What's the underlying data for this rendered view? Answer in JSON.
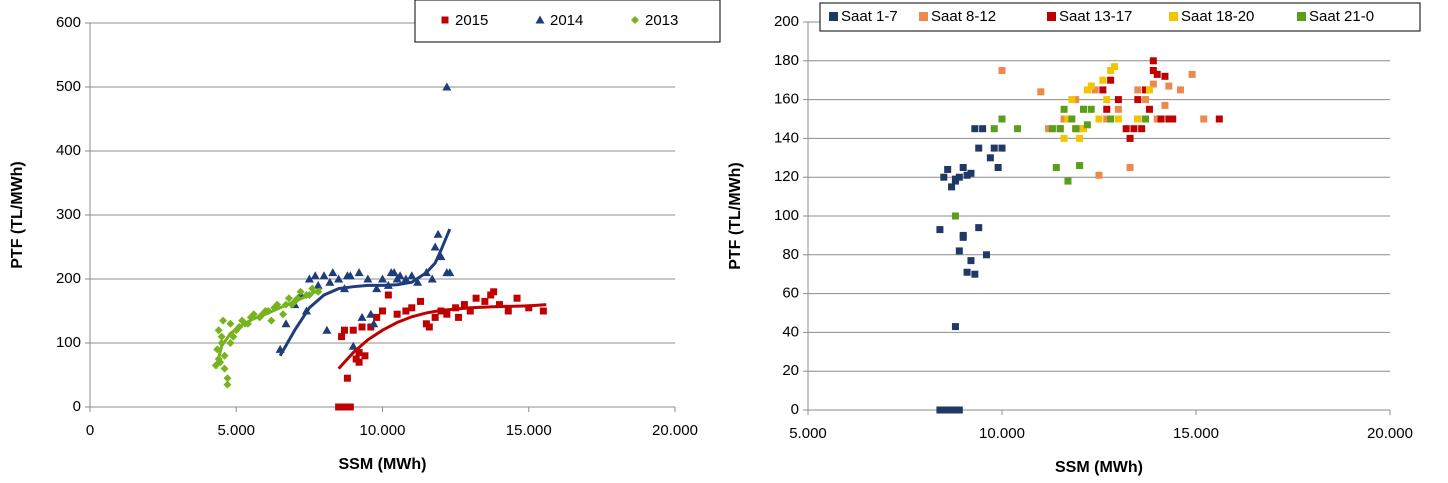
{
  "chart_data": [
    {
      "type": "scatter",
      "xlabel": "SSM (MWh)",
      "ylabel": "PTF (TL/MWh)",
      "xlim": [
        0,
        20000
      ],
      "xticks": [
        0,
        {
          "value": 5000,
          "label": "5.000"
        },
        {
          "value": 10000,
          "label": "10.000"
        },
        {
          "value": 15000,
          "label": "15.000"
        },
        {
          "value": 20000,
          "label": "20.000"
        }
      ],
      "ylim": [
        0,
        600
      ],
      "yticks": [
        0,
        100,
        200,
        300,
        400,
        500,
        600
      ],
      "grid": true,
      "legend": "top-right",
      "series": [
        {
          "name": "2015",
          "color": "#c00000",
          "marker": "square",
          "x": [
            8500,
            8600,
            8700,
            8800,
            8900,
            8700,
            8800,
            9000,
            9100,
            9200,
            9300,
            9400,
            9600,
            9800,
            10000,
            10200,
            10500,
            10800,
            11000,
            11300,
            11500,
            11800,
            12000,
            12200,
            12500,
            12800,
            13000,
            13200,
            13500,
            13800,
            14000,
            14300,
            14600,
            15000,
            15500,
            8600,
            9200,
            11600,
            12600,
            13700
          ],
          "values": [
            0,
            0,
            0,
            0,
            0,
            120,
            45,
            120,
            75,
            85,
            125,
            80,
            125,
            140,
            150,
            175,
            145,
            150,
            155,
            165,
            130,
            140,
            150,
            145,
            155,
            160,
            150,
            170,
            165,
            180,
            160,
            150,
            170,
            155,
            150,
            110,
            70,
            125,
            140,
            175
          ]
        },
        {
          "name": "2014",
          "color": "#1f3d7a",
          "marker": "triangle",
          "x": [
            6500,
            6700,
            7000,
            7200,
            7500,
            7700,
            7800,
            8000,
            8200,
            8300,
            8500,
            8700,
            8900,
            9000,
            9200,
            9500,
            9700,
            9800,
            10000,
            10200,
            10400,
            10600,
            10800,
            11000,
            11200,
            11500,
            11700,
            11900,
            12000,
            12200,
            12300,
            7400,
            8100,
            9300,
            10500,
            11800,
            12200,
            8800,
            9600,
            10300
          ],
          "values": [
            90,
            130,
            160,
            175,
            200,
            205,
            190,
            205,
            195,
            210,
            200,
            185,
            205,
            95,
            210,
            200,
            130,
            185,
            200,
            190,
            210,
            205,
            200,
            205,
            195,
            210,
            200,
            270,
            235,
            210,
            210,
            150,
            120,
            140,
            200,
            250,
            500,
            205,
            145,
            210
          ]
        },
        {
          "name": "2013",
          "color": "#77b31e",
          "marker": "diamond",
          "x": [
            4300,
            4350,
            4400,
            4450,
            4500,
            4550,
            4600,
            4700,
            4800,
            4900,
            5000,
            5200,
            5400,
            5600,
            5800,
            6000,
            6200,
            6400,
            6600,
            6800,
            7000,
            7200,
            7400,
            7600,
            7800,
            4400,
            4500,
            4700,
            5100,
            5500,
            5900,
            6300,
            6700,
            7100,
            7500,
            4600,
            4800,
            5300,
            6100,
            6900
          ],
          "values": [
            65,
            90,
            120,
            70,
            100,
            135,
            80,
            35,
            130,
            110,
            120,
            135,
            130,
            145,
            140,
            150,
            135,
            160,
            145,
            170,
            165,
            180,
            175,
            185,
            180,
            75,
            110,
            45,
            125,
            140,
            145,
            155,
            160,
            170,
            175,
            60,
            100,
            130,
            150,
            160
          ]
        }
      ],
      "trendlines": [
        {
          "color": "#c00000",
          "x": [
            8500,
            9000,
            9500,
            10000,
            10500,
            11000,
            11500,
            12000,
            13000,
            14000,
            15000,
            15600
          ],
          "values": [
            60,
            85,
            105,
            120,
            132,
            141,
            147,
            151,
            155,
            157,
            158,
            160
          ]
        },
        {
          "color": "#1f3d7a",
          "x": [
            6500,
            7000,
            7500,
            8000,
            8500,
            9000,
            9500,
            10000,
            10500,
            11000,
            11500,
            11800,
            12000,
            12300
          ],
          "values": [
            80,
            120,
            155,
            175,
            185,
            188,
            190,
            190,
            191,
            195,
            210,
            225,
            245,
            278
          ]
        },
        {
          "color": "#77b31e",
          "x": [
            4300,
            4500,
            4800,
            5200,
            5600,
            6000,
            6500,
            7000,
            7500,
            7900
          ],
          "values": [
            60,
            95,
            115,
            128,
            138,
            145,
            155,
            165,
            175,
            185
          ]
        }
      ]
    },
    {
      "type": "scatter",
      "xlabel": "SSM (MWh)",
      "ylabel": "PTF (TL/MWh)",
      "xlim": [
        5000,
        20000
      ],
      "xticks": [
        {
          "value": 5000,
          "label": "5.000"
        },
        {
          "value": 10000,
          "label": "10.000"
        },
        {
          "value": 15000,
          "label": "15.000"
        },
        {
          "value": 20000,
          "label": "20.000"
        }
      ],
      "ylim": [
        0,
        200
      ],
      "yticks": [
        0,
        20,
        40,
        60,
        80,
        100,
        120,
        140,
        160,
        180,
        200
      ],
      "grid": true,
      "legend": "top",
      "series": [
        {
          "name": "Saat 1-7",
          "color": "#1f3864",
          "marker": "square",
          "x": [
            8400,
            8500,
            8600,
            8700,
            8800,
            8900,
            8500,
            8600,
            8700,
            8800,
            8900,
            9000,
            9100,
            9200,
            9300,
            9400,
            9500,
            9600,
            9700,
            9800,
            9900,
            10000,
            9000,
            9200,
            9300,
            9100,
            8800,
            8900,
            9400,
            9000,
            8800,
            8400
          ],
          "values": [
            0,
            0,
            0,
            0,
            0,
            0,
            120,
            124,
            115,
            118,
            120,
            125,
            121,
            122,
            145,
            135,
            145,
            80,
            130,
            135,
            125,
            135,
            90,
            77,
            70,
            71,
            43,
            82,
            94,
            89,
            119,
            93
          ]
        },
        {
          "name": "Saat 8-12",
          "color": "#eb8a4a",
          "marker": "square",
          "x": [
            10000,
            11000,
            11200,
            11600,
            12000,
            12500,
            12700,
            13000,
            13300,
            13500,
            13700,
            13900,
            14000,
            14200,
            14300,
            14600,
            14900,
            15200,
            12400,
            11900
          ],
          "values": [
            175,
            164,
            145,
            150,
            145,
            121,
            150,
            155,
            125,
            165,
            160,
            168,
            150,
            157,
            167,
            165,
            173,
            150,
            165,
            160
          ]
        },
        {
          "name": "Saat 13-17",
          "color": "#c00000",
          "marker": "square",
          "x": [
            12600,
            12800,
            13000,
            13200,
            13300,
            13400,
            13500,
            13600,
            13700,
            13800,
            13900,
            14000,
            14100,
            14200,
            14300,
            14400,
            15600,
            12700,
            13500,
            13900
          ],
          "values": [
            165,
            170,
            160,
            145,
            140,
            145,
            150,
            145,
            165,
            155,
            180,
            173,
            150,
            172,
            150,
            150,
            150,
            155,
            160,
            175
          ]
        },
        {
          "name": "Saat 18-20",
          "color": "#f2c500",
          "marker": "square",
          "x": [
            11500,
            11700,
            11800,
            11900,
            12000,
            12100,
            12200,
            12300,
            12500,
            12600,
            12700,
            12800,
            12900,
            13000,
            13500,
            13800,
            11600,
            12100
          ],
          "values": [
            145,
            150,
            160,
            145,
            140,
            145,
            165,
            167,
            150,
            170,
            160,
            175,
            177,
            150,
            150,
            165,
            140,
            155
          ]
        },
        {
          "name": "Saat 21-0",
          "color": "#5a9e1a",
          "marker": "square",
          "x": [
            8800,
            9800,
            10000,
            10400,
            11300,
            11400,
            11500,
            11600,
            11700,
            11800,
            11900,
            12000,
            12200,
            12300,
            12800,
            13700,
            11500,
            12100
          ],
          "values": [
            100,
            145,
            150,
            145,
            145,
            125,
            145,
            155,
            118,
            150,
            145,
            126,
            147,
            155,
            150,
            150,
            145,
            155
          ]
        }
      ]
    }
  ]
}
